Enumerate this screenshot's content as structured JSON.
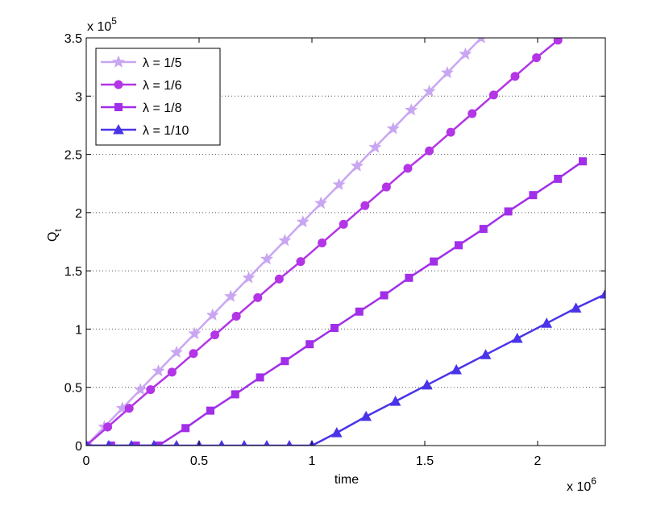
{
  "chart_data": {
    "type": "line",
    "x_label": "time",
    "y_label": "Q",
    "y_label_subscript": "t",
    "x_multiplier": {
      "base": "x 10",
      "exponent": "6"
    },
    "y_multiplier": {
      "base": "x 10",
      "exponent": "5"
    },
    "xlim": [
      0,
      2.3
    ],
    "xticks": [
      0,
      0.5,
      1,
      1.5,
      2
    ],
    "ylim": [
      0,
      3.5
    ],
    "yticks": [
      0,
      0.5,
      1,
      1.5,
      2,
      2.5,
      3,
      3.5
    ],
    "grid": "y",
    "legend": "top-left",
    "series": [
      {
        "name": "λ = 1/5",
        "color": "#c9a6f2",
        "marker": "star",
        "x": [
          0,
          0.08,
          0.16,
          0.24,
          0.32,
          0.4,
          0.48,
          0.56,
          0.64,
          0.72,
          0.8,
          0.88,
          0.96,
          1.04,
          1.12,
          1.2,
          1.28,
          1.36,
          1.44,
          1.52,
          1.6,
          1.68,
          1.75
        ],
        "values": [
          0,
          0.16,
          0.32,
          0.48,
          0.64,
          0.8,
          0.96,
          1.12,
          1.28,
          1.44,
          1.6,
          1.76,
          1.92,
          2.08,
          2.24,
          2.4,
          2.56,
          2.72,
          2.88,
          3.04,
          3.2,
          3.36,
          3.5
        ]
      },
      {
        "name": "λ = 1/6",
        "color": "#b335e6",
        "marker": "circle",
        "x": [
          0,
          0.095,
          0.19,
          0.285,
          0.38,
          0.475,
          0.57,
          0.665,
          0.76,
          0.855,
          0.95,
          1.045,
          1.14,
          1.235,
          1.33,
          1.425,
          1.52,
          1.615,
          1.71,
          1.805,
          1.9,
          1.995,
          2.09
        ],
        "values": [
          0,
          0.16,
          0.32,
          0.48,
          0.63,
          0.79,
          0.95,
          1.11,
          1.27,
          1.43,
          1.58,
          1.74,
          1.9,
          2.06,
          2.22,
          2.38,
          2.53,
          2.69,
          2.85,
          3.01,
          3.17,
          3.33,
          3.48
        ]
      },
      {
        "name": "λ = 1/8",
        "color": "#a12ee8",
        "marker": "square",
        "x": [
          0,
          0.11,
          0.22,
          0.32,
          0.44,
          0.55,
          0.66,
          0.77,
          0.88,
          0.99,
          1.1,
          1.21,
          1.32,
          1.43,
          1.54,
          1.65,
          1.76,
          1.87,
          1.98,
          2.09,
          2.2
        ],
        "values": [
          0,
          0,
          0,
          0,
          0.15,
          0.3,
          0.44,
          0.585,
          0.725,
          0.87,
          1.01,
          1.15,
          1.29,
          1.44,
          1.58,
          1.72,
          1.86,
          2.01,
          2.15,
          2.29,
          2.44
        ]
      },
      {
        "name": "λ = 1/10",
        "color": "#4a34e8",
        "marker": "triangle",
        "x": [
          0,
          0.1,
          0.2,
          0.3,
          0.4,
          0.5,
          0.6,
          0.7,
          0.8,
          0.9,
          1.0,
          1.11,
          1.24,
          1.37,
          1.51,
          1.64,
          1.77,
          1.91,
          2.04,
          2.17,
          2.3
        ],
        "values": [
          0,
          0,
          0,
          0,
          0,
          0,
          0,
          0,
          0,
          0,
          0,
          0.11,
          0.25,
          0.38,
          0.52,
          0.65,
          0.78,
          0.92,
          1.05,
          1.18,
          1.3
        ]
      }
    ]
  }
}
